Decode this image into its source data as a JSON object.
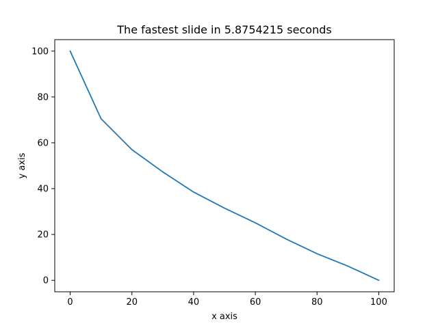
{
  "chart_data": {
    "type": "line",
    "title": "The fastest slide in 5.8754215 seconds",
    "xlabel": "x axis",
    "ylabel": "y axis",
    "xlim": [
      -5,
      105
    ],
    "ylim": [
      -5,
      105
    ],
    "xticks": [
      0,
      20,
      40,
      60,
      80,
      100
    ],
    "yticks": [
      0,
      20,
      40,
      60,
      80,
      100
    ],
    "grid": false,
    "series": [
      {
        "color": "#1f77b4",
        "x": [
          0,
          10,
          20,
          30,
          40,
          50,
          60,
          70,
          80,
          90,
          100
        ],
        "y": [
          100,
          70.5,
          57,
          47.3,
          38.5,
          31.5,
          25.1,
          18,
          11.6,
          6.2,
          0
        ]
      }
    ]
  }
}
